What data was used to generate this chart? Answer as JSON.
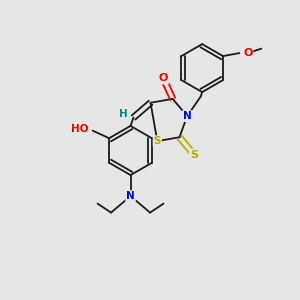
{
  "bg_color": "#e6e6e6",
  "bond_color": "#1a1a1a",
  "atom_colors": {
    "N": "#0000ee",
    "O": "#ee0000",
    "S": "#bbaa00",
    "H": "#008888",
    "C": "#1a1a1a"
  },
  "figsize": [
    3.0,
    3.0
  ],
  "dpi": 100,
  "lw": 1.3
}
